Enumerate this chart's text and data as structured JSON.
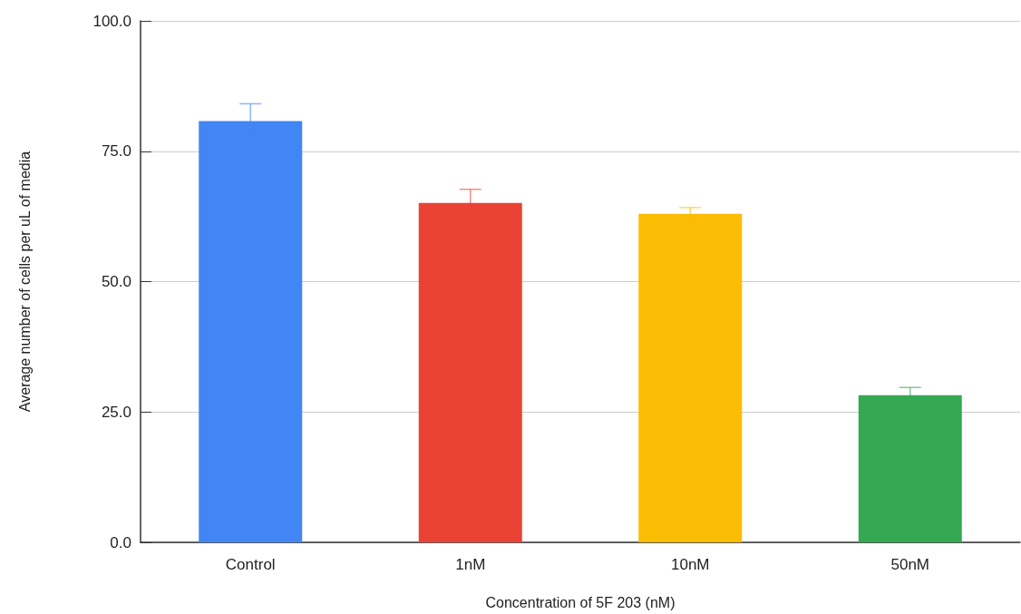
{
  "chart_data": {
    "type": "bar",
    "xlabel": "Concentration of 5F 203 (nM)",
    "ylabel": "Average number of cells per uL of media",
    "categories": [
      "Control",
      "1nM",
      "10nM",
      "50nM"
    ],
    "values": [
      80.8,
      65.1,
      63.0,
      28.2
    ],
    "errors": [
      3.3,
      2.6,
      1.2,
      1.5
    ],
    "colors": [
      "#4285f4",
      "#ea4335",
      "#fbbc04",
      "#34a853"
    ],
    "ylim": [
      0,
      100
    ],
    "yticks": [
      {
        "value": 0,
        "label": "0.0"
      },
      {
        "value": 25,
        "label": "25.0"
      },
      {
        "value": 50,
        "label": "50.0"
      },
      {
        "value": 75,
        "label": "75.0"
      },
      {
        "value": 100,
        "label": "100.0"
      }
    ],
    "grid": "y"
  }
}
